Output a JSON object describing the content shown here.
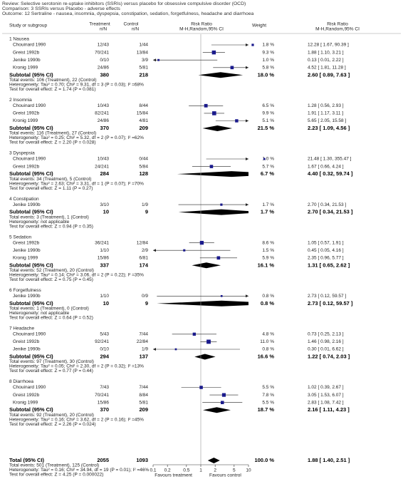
{
  "header": {
    "review": "Review:  Selective serotonin re-uptake inhibitors (SSRIs) versus placebo for obsessive compulsive disorder (OCD)",
    "comparison": "Comparison:  3 SSRIs versus Placebo - adverse effects",
    "outcome": "Outcome:  12 Sertraline - nausea, insomnia, dyspepsia, constipation, sedation, forgetfulness, headache and diarrhoea"
  },
  "chart_data": {
    "type": "forest",
    "log_x": true,
    "xlim": [
      0.1,
      10
    ],
    "xticks": [
      0.1,
      0.2,
      0.5,
      1,
      2,
      5,
      10
    ],
    "x_label_left": "Favours treatment",
    "x_label_right": "Favours control",
    "columns": {
      "study": "Study or subgroup",
      "treatment": "Treatment",
      "treatment_sub": "n/N",
      "control": "Control",
      "control_sub": "n/N",
      "plot": "Risk Ratio",
      "plot_sub": "M-H,Random,95% CI",
      "weight": "Weight",
      "rr": "Risk Ratio",
      "rr_sub": "M-H,Random,95% CI"
    },
    "subtotal_label": "Subtotal (95% CI)",
    "color": "#1a1a8c",
    "groups": [
      {
        "name": "1 Nausea",
        "studies": [
          {
            "name": "Chouinard 1990",
            "treatment": "12/43",
            "control": "1/44",
            "weight": 1.8,
            "weight_label": "1.8 %",
            "rr": 12.28,
            "ci": [
              1.67,
              90.39
            ],
            "rr_label": "12.28 [ 1.67, 90.39 ]"
          },
          {
            "name": "Greist 1992b",
            "treatment": "70/241",
            "control": "13/84",
            "weight": 9.3,
            "weight_label": "9.3 %",
            "rr": 1.88,
            "ci": [
              1.1,
              3.21
            ],
            "rr_label": "1.88 [ 1.10, 3.21 ]"
          },
          {
            "name": "Jenike 1990b",
            "treatment": "0/10",
            "control": "3/9",
            "weight": 1.0,
            "weight_label": "1.0 %",
            "rr": 0.13,
            "ci": [
              0.01,
              2.22
            ],
            "rr_label": "0.13 [ 0.01, 2.22 ]"
          },
          {
            "name": "Kronig 1999",
            "treatment": "24/86",
            "control": "5/81",
            "weight": 5.8,
            "weight_label": "5.8 %",
            "rr": 4.52,
            "ci": [
              1.81,
              11.28
            ],
            "rr_label": "4.52 [ 1.81, 11.28 ]"
          }
        ],
        "subtotal": {
          "treatment": 380,
          "control": 218,
          "weight": 18.0,
          "weight_label": "18.0 %",
          "rr": 2.6,
          "ci": [
            0.89,
            7.63
          ],
          "rr_label": "2.60 [ 0.89, 7.63 ]"
        },
        "events": "Total events: 106 (Treatment), 22 (Control)",
        "heterogeneity": "Heterogeneity: Tau² = 0.70; Chi² = 9.31, df = 3 (P = 0.03); I² =68%",
        "test": "Test for overall effect: Z = 1.74 (P = 0.081)"
      },
      {
        "name": "2 Insomnia",
        "studies": [
          {
            "name": "Chouinard 1990",
            "treatment": "10/43",
            "control": "8/44",
            "weight": 6.5,
            "weight_label": "6.5 %",
            "rr": 1.28,
            "ci": [
              0.56,
              2.93
            ],
            "rr_label": "1.28 [ 0.56, 2.93 ]"
          },
          {
            "name": "Greist 1992b",
            "treatment": "82/241",
            "control": "15/84",
            "weight": 9.9,
            "weight_label": "9.9 %",
            "rr": 1.91,
            "ci": [
              1.17,
              3.11
            ],
            "rr_label": "1.91 [ 1.17, 3.11 ]"
          },
          {
            "name": "Kronig 1999",
            "treatment": "24/86",
            "control": "4/81",
            "weight": 5.1,
            "weight_label": "5.1 %",
            "rr": 5.65,
            "ci": [
              2.05,
              15.58
            ],
            "rr_label": "5.65 [ 2.05, 15.58 ]"
          }
        ],
        "subtotal": {
          "treatment": 370,
          "control": 209,
          "weight": 21.5,
          "weight_label": "21.5 %",
          "rr": 2.23,
          "ci": [
            1.09,
            4.56
          ],
          "rr_label": "2.23 [ 1.09, 4.56 ]"
        },
        "events": "Total events: 116 (Treatment), 27 (Control)",
        "heterogeneity": "Heterogeneity: Tau² = 0.25; Chi² = 5.32, df = 2 (P = 0.07); I² =62%",
        "test": "Test for overall effect: Z = 2.20 (P = 0.028)"
      },
      {
        "name": "3 Dyspepsia",
        "studies": [
          {
            "name": "Chouinard 1990",
            "treatment": "10/43",
            "control": "0/44",
            "weight": 1.0,
            "weight_label": "1.0 %",
            "rr": 21.48,
            "ci": [
              1.3,
              355.47
            ],
            "rr_label": "21.48 [ 1.30, 355.47 ]"
          },
          {
            "name": "Greist 1992b",
            "treatment": "24/241",
            "control": "5/84",
            "weight": 5.7,
            "weight_label": "5.7 %",
            "rr": 1.67,
            "ci": [
              0.66,
              4.24
            ],
            "rr_label": "1.67 [ 0.66, 4.24 ]"
          }
        ],
        "subtotal": {
          "treatment": 284,
          "control": 128,
          "weight": 6.7,
          "weight_label": "6.7 %",
          "rr": 4.4,
          "ci": [
            0.32,
            59.74
          ],
          "rr_label": "4.40 [ 0.32, 59.74 ]"
        },
        "events": "Total events: 34 (Treatment), 5 (Control)",
        "heterogeneity": "Heterogeneity: Tau² = 2.63; Chi² = 3.31, df = 1 (P = 0.07); I² =70%",
        "test": "Test for overall effect: Z = 1.11 (P = 0.27)"
      },
      {
        "name": "4 Constipation",
        "studies": [
          {
            "name": "Jenike 1990b",
            "treatment": "3/10",
            "control": "1/9",
            "weight": 1.7,
            "weight_label": "1.7 %",
            "rr": 2.7,
            "ci": [
              0.34,
              21.53
            ],
            "rr_label": "2.70 [ 0.34, 21.53 ]"
          }
        ],
        "subtotal": {
          "treatment": 10,
          "control": 9,
          "weight": 1.7,
          "weight_label": "1.7 %",
          "rr": 2.7,
          "ci": [
            0.34,
            21.53
          ],
          "rr_label": "2.70 [ 0.34, 21.53 ]"
        },
        "events": "Total events: 3 (Treatment), 1 (Control)",
        "heterogeneity": "Heterogeneity: not applicable",
        "test": "Test for overall effect: Z = 0.94 (P = 0.35)"
      },
      {
        "name": "5 Sedation",
        "studies": [
          {
            "name": "Greist 1992b",
            "treatment": "36/241",
            "control": "12/84",
            "weight": 8.6,
            "weight_label": "8.6 %",
            "rr": 1.05,
            "ci": [
              0.57,
              1.91
            ],
            "rr_label": "1.05 [ 0.57, 1.91 ]"
          },
          {
            "name": "Jenike 1990b",
            "treatment": "1/10",
            "control": "2/9",
            "weight": 1.5,
            "weight_label": "1.5 %",
            "rr": 0.45,
            "ci": [
              0.05,
              4.16
            ],
            "rr_label": "0.45 [ 0.05, 4.16 ]"
          },
          {
            "name": "Kronig 1999",
            "treatment": "15/86",
            "control": "6/81",
            "weight": 5.9,
            "weight_label": "5.9 %",
            "rr": 2.35,
            "ci": [
              0.96,
              5.77
            ],
            "rr_label": "2.35 [ 0.96, 5.77 ]"
          }
        ],
        "subtotal": {
          "treatment": 337,
          "control": 174,
          "weight": 16.1,
          "weight_label": "16.1 %",
          "rr": 1.31,
          "ci": [
            0.65,
            2.62
          ],
          "rr_label": "1.31 [ 0.65, 2.62 ]"
        },
        "events": "Total events: 52 (Treatment), 20 (Control)",
        "heterogeneity": "Heterogeneity: Tau² = 0.14; Chi² = 3.06, df = 2 (P = 0.22); I² =35%",
        "test": "Test for overall effect: Z = 0.75 (P = 0.45)"
      },
      {
        "name": "6 Forgetfulness",
        "studies": [
          {
            "name": "Jenike 1990b",
            "treatment": "1/10",
            "control": "0/9",
            "weight": 0.8,
            "weight_label": "0.8 %",
            "rr": 2.73,
            "ci": [
              0.12,
              59.57
            ],
            "rr_label": "2.73 [ 0.12, 59.57 ]"
          }
        ],
        "subtotal": {
          "treatment": 10,
          "control": 9,
          "weight": 0.8,
          "weight_label": "0.8 %",
          "rr": 2.73,
          "ci": [
            0.12,
            59.57
          ],
          "rr_label": "2.73 [ 0.12, 59.57 ]"
        },
        "events": "Total events: 1 (Treatment), 0 (Control)",
        "heterogeneity": "Heterogeneity: not applicable",
        "test": "Test for overall effect: Z = 0.64 (P = 0.52)"
      },
      {
        "name": "7 Headache",
        "studies": [
          {
            "name": "Chouinard 1990",
            "treatment": "5/43",
            "control": "7/44",
            "weight": 4.8,
            "weight_label": "4.8 %",
            "rr": 0.73,
            "ci": [
              0.25,
              2.13
            ],
            "rr_label": "0.73 [ 0.25, 2.13 ]"
          },
          {
            "name": "Greist 1992b",
            "treatment": "92/241",
            "control": "22/84",
            "weight": 11.0,
            "weight_label": "11.0 %",
            "rr": 1.46,
            "ci": [
              0.98,
              2.16
            ],
            "rr_label": "1.46 [ 0.98, 2.16 ]"
          },
          {
            "name": "Jenike 1990b",
            "treatment": "0/10",
            "control": "1/9",
            "weight": 0.8,
            "weight_label": "0.8 %",
            "rr": 0.3,
            "ci": [
              0.01,
              6.62
            ],
            "rr_label": "0.30 [ 0.01, 6.62 ]"
          }
        ],
        "subtotal": {
          "treatment": 294,
          "control": 137,
          "weight": 16.6,
          "weight_label": "16.6 %",
          "rr": 1.22,
          "ci": [
            0.74,
            2.03
          ],
          "rr_label": "1.22 [ 0.74, 2.03 ]"
        },
        "events": "Total events: 97 (Treatment), 30 (Control)",
        "heterogeneity": "Heterogeneity: Tau² = 0.05; Chi² = 2.30, df = 2 (P = 0.32); I² =13%",
        "test": "Test for overall effect: Z = 0.77 (P = 0.44)"
      },
      {
        "name": "8 Diarrhoea",
        "studies": [
          {
            "name": "Chouinard 1990",
            "treatment": "7/43",
            "control": "7/44",
            "weight": 5.5,
            "weight_label": "5.5 %",
            "rr": 1.02,
            "ci": [
              0.39,
              2.67
            ],
            "rr_label": "1.02 [ 0.39, 2.67 ]"
          },
          {
            "name": "Greist 1992b",
            "treatment": "70/241",
            "control": "8/84",
            "weight": 7.8,
            "weight_label": "7.8 %",
            "rr": 3.05,
            "ci": [
              1.53,
              6.07
            ],
            "rr_label": "3.05 [ 1.53, 6.07 ]"
          },
          {
            "name": "Kronig 1999",
            "treatment": "15/86",
            "control": "5/81",
            "weight": 5.5,
            "weight_label": "5.5 %",
            "rr": 2.83,
            "ci": [
              1.08,
              7.42
            ],
            "rr_label": "2.83 [ 1.08, 7.42 ]"
          }
        ],
        "subtotal": {
          "treatment": 370,
          "control": 209,
          "weight": 18.7,
          "weight_label": "18.7 %",
          "rr": 2.16,
          "ci": [
            1.11,
            4.23
          ],
          "rr_label": "2.16 [ 1.11, 4.23 ]"
        },
        "events": "Total events: 92 (Treatment), 20 (Control)",
        "heterogeneity": "Heterogeneity: Tau² = 0.16; Chi² = 3.62, df = 2 (P = 0.16); I² =45%",
        "test": "Test for overall effect: Z = 2.26 (P = 0.024)"
      }
    ],
    "total": {
      "label": "Total (95% CI)",
      "treatment": 2055,
      "control": 1093,
      "weight": 100.0,
      "weight_label": "100.0 %",
      "rr": 1.88,
      "ci": [
        1.4,
        2.51
      ],
      "rr_label": "1.88 [ 1.40, 2.51 ]",
      "events": "Total events: 501 (Treatment), 125 (Control)",
      "heterogeneity": "Heterogeneity: Tau² = 0.16; Chi² = 34.94, df = 19 (P = 0.01); I² =46%",
      "test": "Test for overall effect: Z = 4.25 (P = 0.000022)"
    }
  }
}
